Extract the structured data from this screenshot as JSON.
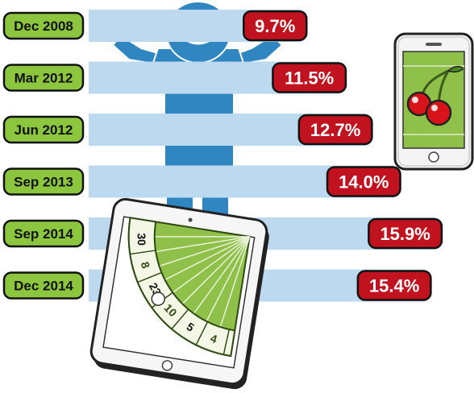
{
  "chart_data": {
    "type": "bar",
    "orientation": "horizontal",
    "categories": [
      "Dec 2008",
      "Mar 2012",
      "Jun 2012",
      "Sep 2013",
      "Sep 2014",
      "Dec 2014"
    ],
    "values": [
      9.7,
      11.5,
      12.7,
      14.0,
      15.9,
      15.4
    ],
    "value_labels": [
      "9.7%",
      "11.5%",
      "12.7%",
      "14.0%",
      "15.9%",
      "15.4%"
    ],
    "unit": "%",
    "title": "",
    "xlabel": "",
    "ylabel": "",
    "xlim": [
      0,
      16.2
    ],
    "grid": false,
    "legend": "none"
  },
  "colors": {
    "bar": "#bcd9ef",
    "category_badge": "#8cc63f",
    "value_badge": "#c1121f",
    "figure": "#2f86c1",
    "device_screen": "#8fc04a"
  },
  "illustrations": {
    "background_figure": "person-icon",
    "top_right_device": "smartphone-icon",
    "phone_screen_art": "cherries-icon",
    "bottom_device": "tablet-icon",
    "tablet_screen_art": "roulette-wheel-icon",
    "roulette_numbers": [
      "4",
      "5",
      "10",
      "23",
      "8",
      "30"
    ]
  }
}
